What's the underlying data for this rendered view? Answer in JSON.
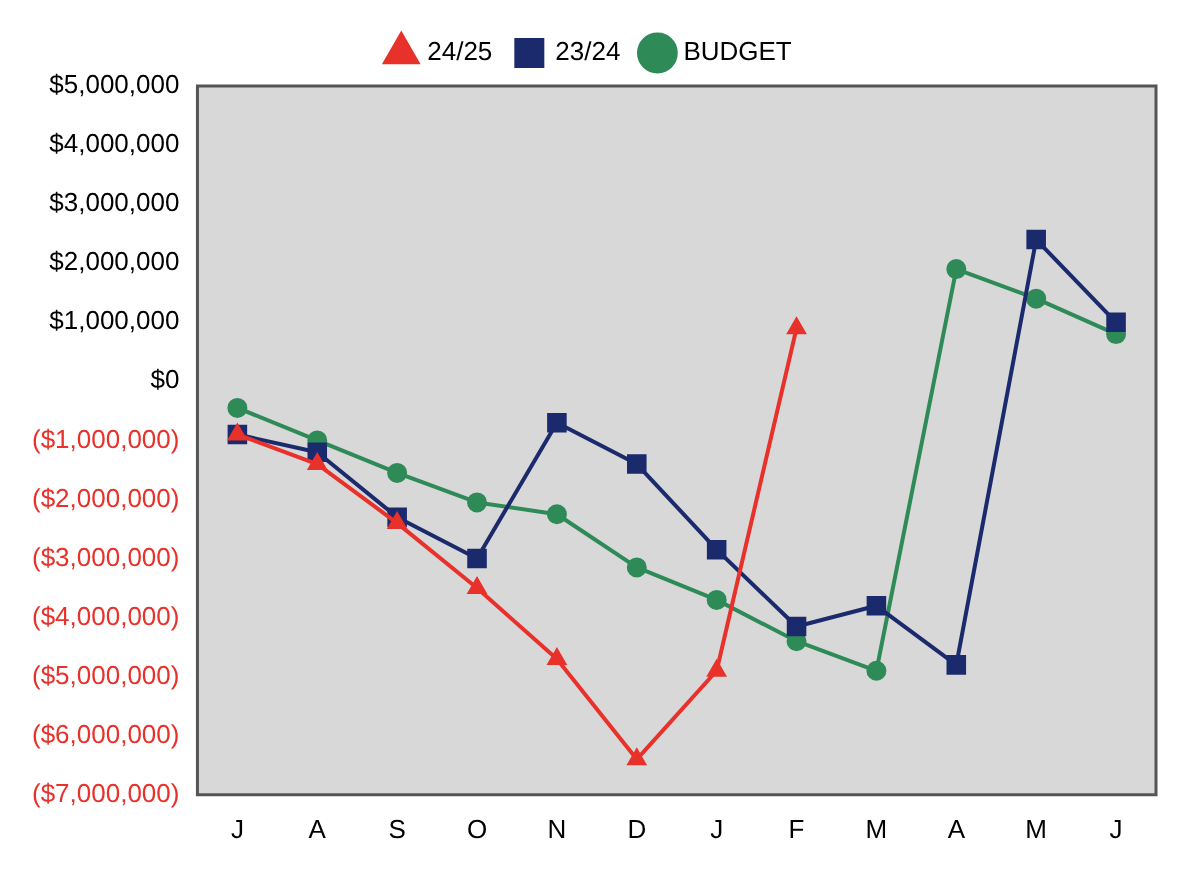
{
  "chart_data": {
    "type": "line",
    "categories": [
      "J",
      "A",
      "S",
      "O",
      "N",
      "D",
      "J",
      "F",
      "M",
      "A",
      "M",
      "J"
    ],
    "series": [
      {
        "name": "24/25",
        "color": "#e8312a",
        "marker": "triangle",
        "values": [
          -900000,
          -1400000,
          -2400000,
          -3500000,
          -4700000,
          -6400000,
          -4900000,
          900000,
          null,
          null,
          null,
          null
        ]
      },
      {
        "name": "23/24",
        "color": "#1a2a6c",
        "marker": "square",
        "values": [
          -900000,
          -1200000,
          -2300000,
          -3000000,
          -700000,
          -1400000,
          -2850000,
          -4150000,
          -3800000,
          -4800000,
          2400000,
          1000000
        ]
      },
      {
        "name": "BUDGET",
        "color": "#2e8b57",
        "marker": "circle",
        "values": [
          -450000,
          -1000000,
          -1550000,
          -2050000,
          -2250000,
          -3150000,
          -3700000,
          -4400000,
          -4900000,
          1900000,
          1400000,
          800000
        ]
      }
    ],
    "ylim": [
      -7000000,
      5000000
    ],
    "yticks": [
      {
        "value": -7000000,
        "label": "($7,000,000)"
      },
      {
        "value": -6000000,
        "label": "($6,000,000)"
      },
      {
        "value": -5000000,
        "label": "($5,000,000)"
      },
      {
        "value": -4000000,
        "label": "($4,000,000)"
      },
      {
        "value": -3000000,
        "label": "($3,000,000)"
      },
      {
        "value": -2000000,
        "label": "($2,000,000)"
      },
      {
        "value": -1000000,
        "label": "($1,000,000)"
      },
      {
        "value": 0,
        "label": "$0"
      },
      {
        "value": 1000000,
        "label": "$1,000,000"
      },
      {
        "value": 2000000,
        "label": "$2,000,000"
      },
      {
        "value": 3000000,
        "label": "$3,000,000"
      },
      {
        "value": 4000000,
        "label": "$4,000,000"
      },
      {
        "value": 5000000,
        "label": "$5,000,000"
      }
    ],
    "grid": false,
    "legend": "top",
    "line_style": "solid"
  }
}
